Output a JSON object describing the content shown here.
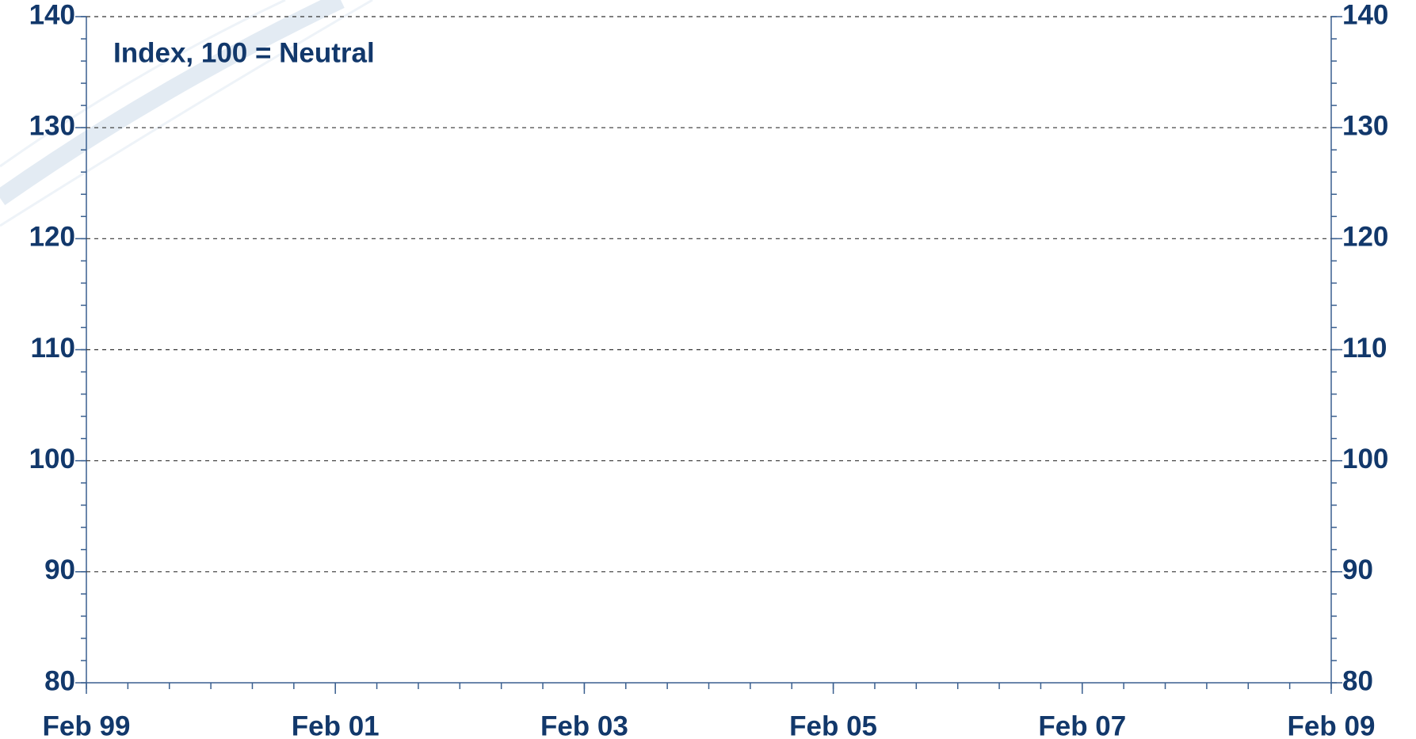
{
  "chart_data": {
    "type": "line",
    "annotation": "Index, 100 = Neutral",
    "xticks": [
      "Feb 99",
      "Feb 01",
      "Feb 03",
      "Feb 05",
      "Feb 07",
      "Feb 09"
    ],
    "x_minor_per_major": 6,
    "ylim": [
      80,
      140
    ],
    "yticks": [
      80,
      90,
      100,
      110,
      120,
      130,
      140
    ],
    "y2lim": [
      80,
      140
    ],
    "y2ticks": [
      80,
      90,
      100,
      110,
      120,
      130,
      140
    ],
    "y_minor_step": 2,
    "grid": true
  }
}
